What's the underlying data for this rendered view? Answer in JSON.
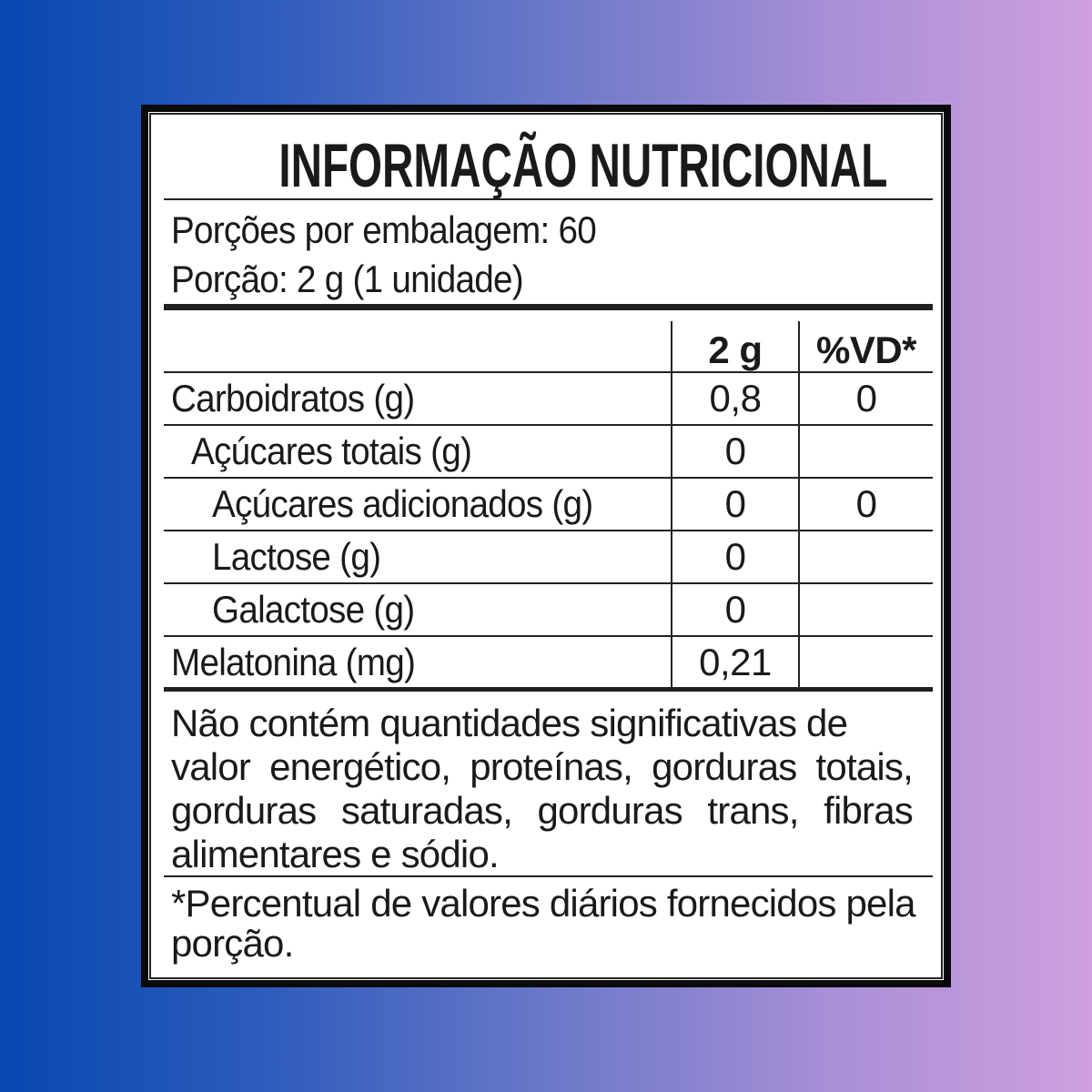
{
  "title": "INFORMAÇÃO NUTRICIONAL",
  "servings_per_package": "Porções por embalagem: 60",
  "serving_size": "Porção: 2 g (1 unidade)",
  "table": {
    "headers": [
      "",
      "2 g",
      "%VD*"
    ],
    "rows": [
      {
        "label": "Carboidratos (g)",
        "amount": "0,8",
        "dv": "0",
        "indent": 0
      },
      {
        "label": "Açúcares totais (g)",
        "amount": "0",
        "dv": "",
        "indent": 1
      },
      {
        "label": "Açúcares adicionados (g)",
        "amount": "0",
        "dv": "0",
        "indent": 2
      },
      {
        "label": "Lactose (g)",
        "amount": "0",
        "dv": "",
        "indent": 2
      },
      {
        "label": "Galactose (g)",
        "amount": "0",
        "dv": "",
        "indent": 2
      },
      {
        "label": "Melatonina (mg)",
        "amount": "0,21",
        "dv": "",
        "indent": 0
      }
    ]
  },
  "note_lines": [
    "Não contém quantidades significativas de",
    "valor energético, proteínas, gorduras totais,",
    "gorduras saturadas, gorduras trans, fibras",
    "alimentares e sódio."
  ],
  "footnote_lines": [
    "*Percentual de valores diários fornecidos pela",
    "porção."
  ],
  "colors": {
    "background_left": "#0747b0",
    "background_right": "#cfa0df",
    "border": "#0a0a0a"
  }
}
